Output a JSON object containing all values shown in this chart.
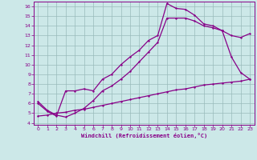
{
  "xlabel": "Windchill (Refroidissement éolien,°C)",
  "bg_color": "#cce8e8",
  "line_color": "#880088",
  "grid_color": "#99bbbb",
  "xlim": [
    -0.5,
    23.5
  ],
  "ylim": [
    3.8,
    16.5
  ],
  "yticks": [
    4,
    5,
    6,
    7,
    8,
    9,
    10,
    11,
    12,
    13,
    14,
    15,
    16
  ],
  "xticks": [
    0,
    1,
    2,
    3,
    4,
    5,
    6,
    7,
    8,
    9,
    10,
    11,
    12,
    13,
    14,
    15,
    16,
    17,
    18,
    19,
    20,
    21,
    22,
    23
  ],
  "curve1_x": [
    0,
    1,
    2,
    3,
    4,
    5,
    6,
    7,
    8,
    9,
    10,
    11,
    12,
    13,
    14,
    15,
    16,
    17,
    18,
    19,
    20,
    21,
    22,
    23
  ],
  "curve1_y": [
    6.0,
    5.2,
    4.7,
    7.3,
    7.3,
    7.5,
    7.3,
    8.5,
    9.0,
    10.0,
    10.8,
    11.5,
    12.5,
    13.0,
    16.3,
    15.8,
    15.7,
    15.1,
    14.2,
    14.0,
    13.5,
    10.8,
    9.2,
    8.5
  ],
  "curve2_x": [
    0,
    1,
    2,
    3,
    4,
    5,
    6,
    7,
    8,
    9,
    10,
    11,
    12,
    13,
    14,
    15,
    16,
    17,
    18,
    19,
    20,
    21,
    22,
    23
  ],
  "curve2_y": [
    6.2,
    5.3,
    4.8,
    4.6,
    5.0,
    5.5,
    6.3,
    7.3,
    7.8,
    8.5,
    9.3,
    10.3,
    11.3,
    12.3,
    14.8,
    14.8,
    14.8,
    14.5,
    14.0,
    13.8,
    13.5,
    13.0,
    12.8,
    13.2
  ],
  "curve3_x": [
    0,
    1,
    2,
    3,
    4,
    5,
    6,
    7,
    8,
    9,
    10,
    11,
    12,
    13,
    14,
    15,
    16,
    17,
    18,
    19,
    20,
    21,
    22,
    23
  ],
  "curve3_y": [
    4.7,
    4.8,
    5.0,
    5.1,
    5.3,
    5.4,
    5.6,
    5.8,
    6.0,
    6.2,
    6.4,
    6.6,
    6.8,
    7.0,
    7.2,
    7.4,
    7.5,
    7.7,
    7.9,
    8.0,
    8.1,
    8.2,
    8.3,
    8.5
  ]
}
